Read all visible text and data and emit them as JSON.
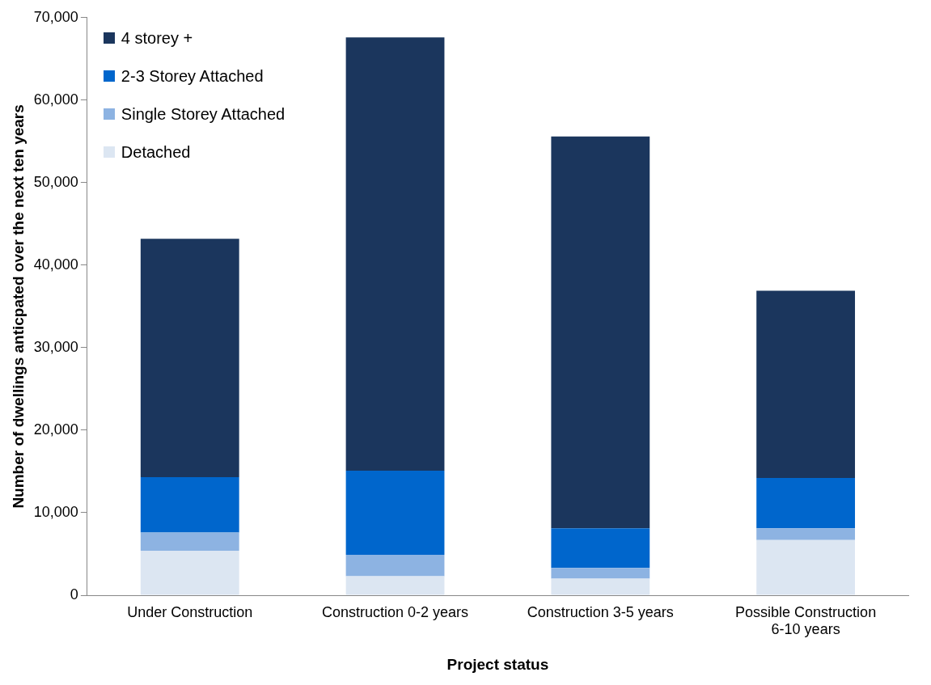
{
  "chart_data": {
    "type": "bar",
    "stacked": true,
    "xlabel": "Project status",
    "ylabel": "Number of dwellings anticpated over the next ten years",
    "categories": [
      "Under Construction",
      "Construction 0-2 years",
      "Construction 3-5 years",
      "Possible Construction 6-10 years"
    ],
    "series": [
      {
        "name": "Detached",
        "color": "#dce6f2",
        "values": [
          5400,
          2300,
          2000,
          6700
        ]
      },
      {
        "name": "Single Storey Attached",
        "color": "#8db3e2",
        "values": [
          2200,
          2600,
          1300,
          1400
        ]
      },
      {
        "name": "2-3 Storey Attached",
        "color": "#0066cc",
        "values": [
          6700,
          10200,
          4800,
          6100
        ]
      },
      {
        "name": "4 storey +",
        "color": "#1b365d",
        "values": [
          28900,
          52500,
          47500,
          22700
        ]
      }
    ],
    "ylim": [
      0,
      70000
    ],
    "yticks": [
      {
        "value": 0,
        "label": "0"
      },
      {
        "value": 10000,
        "label": "10,000"
      },
      {
        "value": 20000,
        "label": "20,000"
      },
      {
        "value": 30000,
        "label": "30,000"
      },
      {
        "value": 40000,
        "label": "40,000"
      },
      {
        "value": 50000,
        "label": "50,000"
      },
      {
        "value": 60000,
        "label": "60,000"
      },
      {
        "value": 70000,
        "label": "70,000"
      }
    ],
    "grid": false,
    "legend": "top left"
  }
}
